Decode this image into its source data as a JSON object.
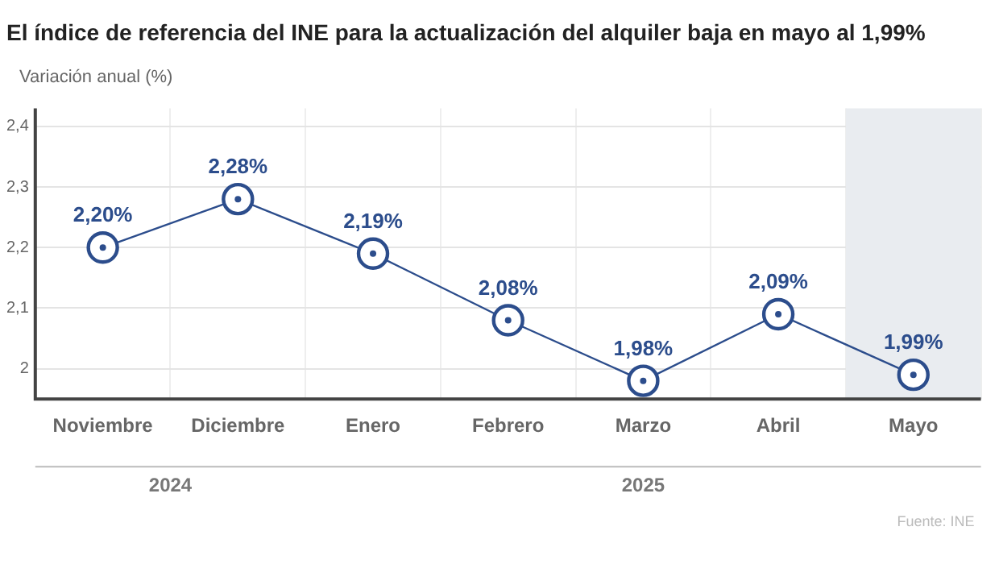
{
  "chart_data": {
    "type": "line",
    "title": "El índice de referencia del INE para la actualización del alquiler baja en mayo al 1,99%",
    "ylabel": "Variación anual (%)",
    "categories": [
      "Noviembre",
      "Diciembre",
      "Enero",
      "Febrero",
      "Marzo",
      "Abril",
      "Mayo"
    ],
    "series": [
      {
        "color": "#2c4d8c",
        "values": [
          2.2,
          2.28,
          2.19,
          2.08,
          1.98,
          2.09,
          1.99
        ],
        "value_labels": [
          "2,20%",
          "2,28%",
          "2,19%",
          "2,08%",
          "1,98%",
          "2,09%",
          "1,99%"
        ]
      }
    ],
    "ylim": [
      1.95,
      2.43
    ],
    "yticks": [
      {
        "value": 2,
        "label": "2"
      },
      {
        "value": 2.1,
        "label": "2,1"
      },
      {
        "value": 2.2,
        "label": "2,2"
      },
      {
        "value": 2.3,
        "label": "2,3"
      },
      {
        "value": 2.4,
        "label": "2,4"
      }
    ],
    "grid": true,
    "marker": "circle",
    "line_style": "solid",
    "bands": [
      {
        "axis": "x",
        "from": "Mayo",
        "to": "Mayo",
        "color": "#e9ecf0"
      }
    ],
    "annotations": [
      "2024",
      "2025",
      "Fuente: INE"
    ]
  }
}
